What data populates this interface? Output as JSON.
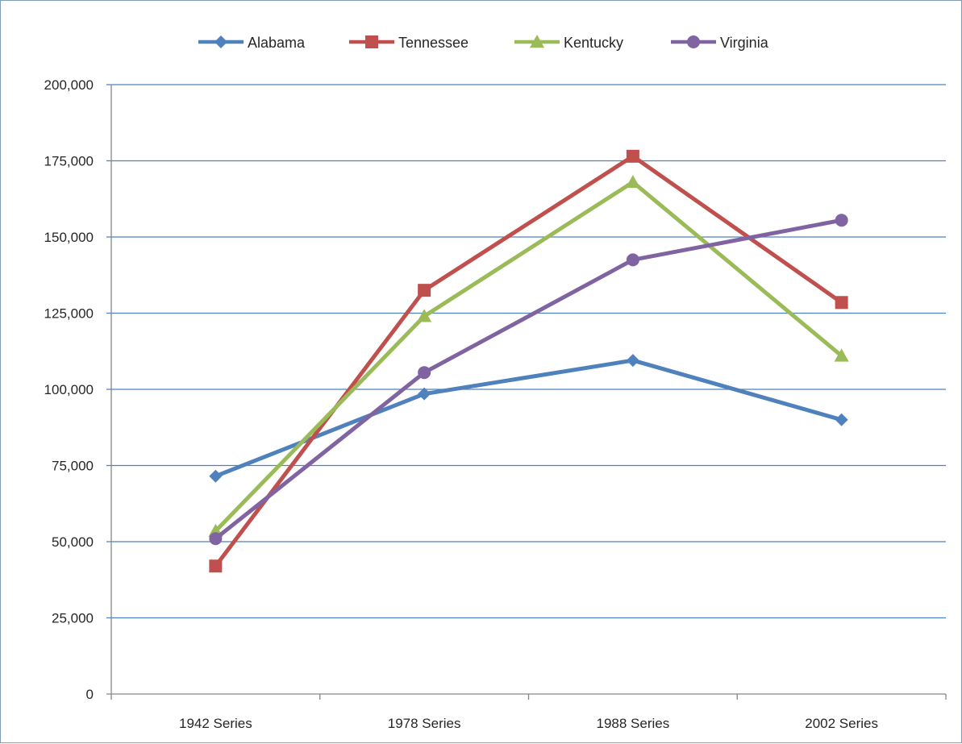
{
  "chart_data": {
    "type": "line",
    "title": "",
    "xlabel": "",
    "ylabel": "",
    "categories": [
      "1942 Series",
      "1978 Series",
      "1988 Series",
      "2002 Series"
    ],
    "ylim": [
      0,
      200000
    ],
    "yticks": [
      0,
      25000,
      50000,
      75000,
      100000,
      125000,
      150000,
      175000,
      200000
    ],
    "ytick_labels": [
      "0",
      "25,000",
      "50,000",
      "75,000",
      "100,000",
      "125,000",
      "150,000",
      "175,000",
      "200,000"
    ],
    "grid": true,
    "grid_color": "#4f81bd",
    "legend_position": "top",
    "series": [
      {
        "name": "Alabama",
        "color": "#4f81bd",
        "marker": "diamond",
        "values": [
          71500,
          98500,
          109500,
          90000
        ]
      },
      {
        "name": "Tennessee",
        "color": "#c0504d",
        "marker": "square",
        "values": [
          42000,
          132500,
          176500,
          128500
        ]
      },
      {
        "name": "Kentucky",
        "color": "#9bbb59",
        "marker": "triangle",
        "values": [
          53500,
          124000,
          168000,
          111000
        ]
      },
      {
        "name": "Virginia",
        "color": "#8064a2",
        "marker": "circle",
        "values": [
          51000,
          105500,
          142500,
          155500
        ]
      }
    ]
  }
}
